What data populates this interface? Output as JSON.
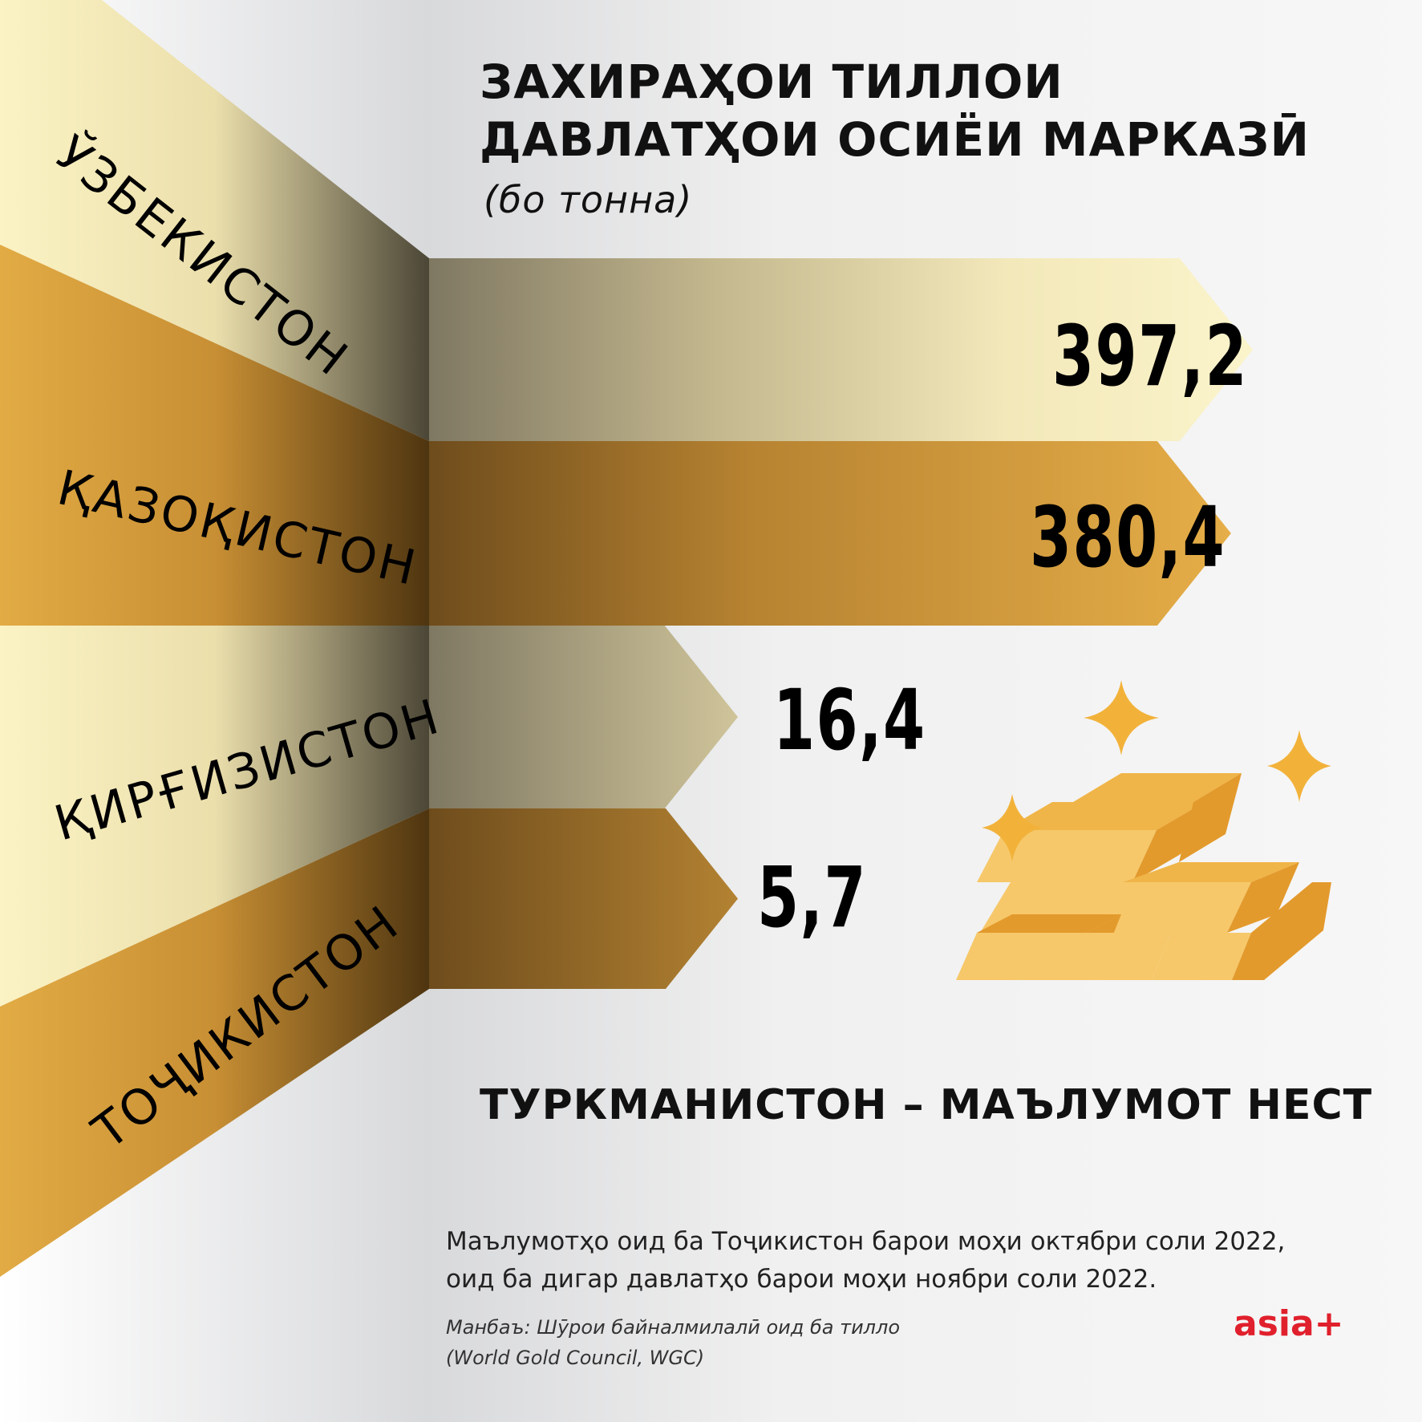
{
  "header": {
    "title_line1": "ЗАХИРАҲОИ ТИЛЛОИ",
    "title_line2": "ДАВЛАТҲОИ ОСИЁИ МАРКАЗӢ",
    "subtitle": "(бо тонна)"
  },
  "chart_data": {
    "type": "bar",
    "title": "ЗАХИРАҲОИ ТИЛЛОИ ДАВЛАТҲОИ ОСИЁИ МАРКАЗӢ",
    "subtitle": "(бо тонна)",
    "unit": "тонна",
    "categories": [
      "ЎЗБЕКИСТОН",
      "ҚАЗОҚИСТОН",
      "ҚИРҒИЗИСТОН",
      "ТОҶИКИСТОН"
    ],
    "values": [
      397.2,
      380.4,
      16.4,
      5.7
    ],
    "value_labels": [
      "397,2",
      "380,4",
      "16,4",
      "5,7"
    ],
    "orientation": "horizontal",
    "colors": {
      "light_band": "#f8f1c4",
      "light_band_dark": "#8a8068",
      "gold_band": "#e0aa45",
      "gold_band_dark": "#6e4e1e",
      "background": "#f4f4f4"
    }
  },
  "notes": {
    "turkmenistan": "ТУРКМАНИСТОН – МАЪЛУМОТ НЕСТ",
    "footnote_line1": "Маълумотҳо оид ба Тоҷикистон барои моҳи октябри соли 2022,",
    "footnote_line2": "оид ба дигар давлатҳо барои моҳи ноябри соли 2022.",
    "source_line1": "Манбаъ: Шӯрои байналмилалӣ оид ба тилло",
    "source_line2": "(World Gold Council, WGC)"
  },
  "brand": {
    "logo_text": "asia+",
    "logo_color": "#e0202c"
  },
  "illustration": {
    "icon": "gold-bars-icon",
    "sparkles": "sparkle-icon",
    "gold_light": "#f6c86a",
    "gold_mid": "#f0b548",
    "gold_dark": "#e39a2c"
  }
}
